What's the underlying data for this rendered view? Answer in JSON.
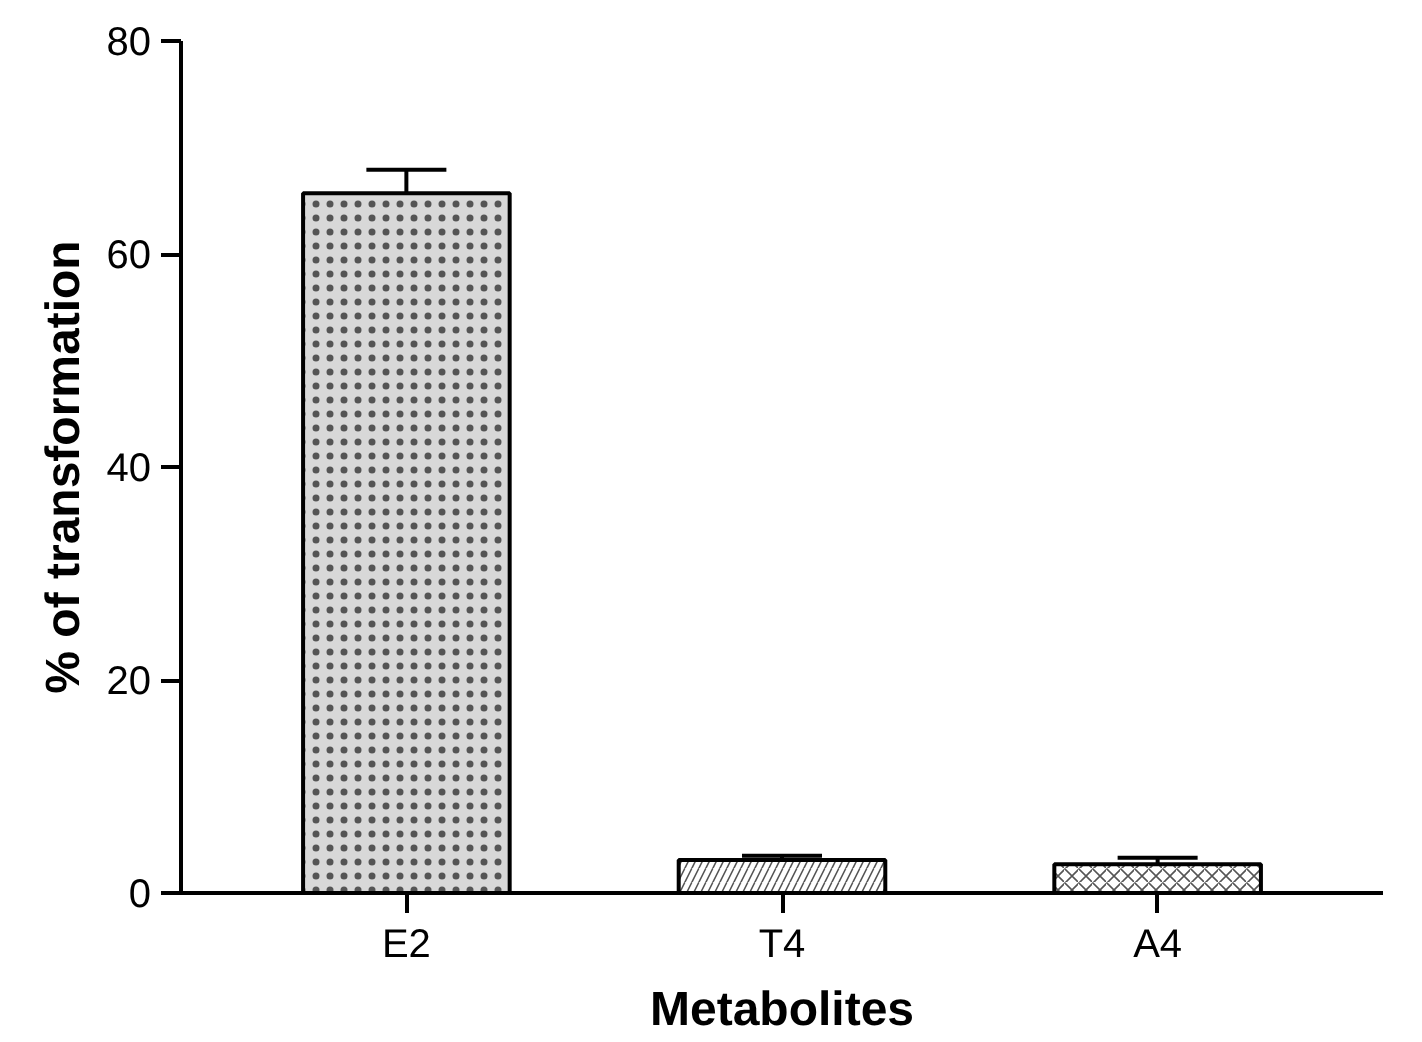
{
  "chart_data": {
    "type": "bar",
    "xlabel": "Metabolites",
    "ylabel": "% of transformation",
    "categories": [
      "E2",
      "T4",
      "A4"
    ],
    "values": [
      65.7,
      3.1,
      2.7
    ],
    "errors": [
      2.2,
      0.4,
      0.6
    ],
    "colors": [
      "#d8d8d8",
      "#ffffff",
      "#ffffff"
    ],
    "ylim": [
      0,
      80
    ],
    "yticks": [
      0,
      20,
      40,
      60,
      80
    ],
    "grid": false
  }
}
